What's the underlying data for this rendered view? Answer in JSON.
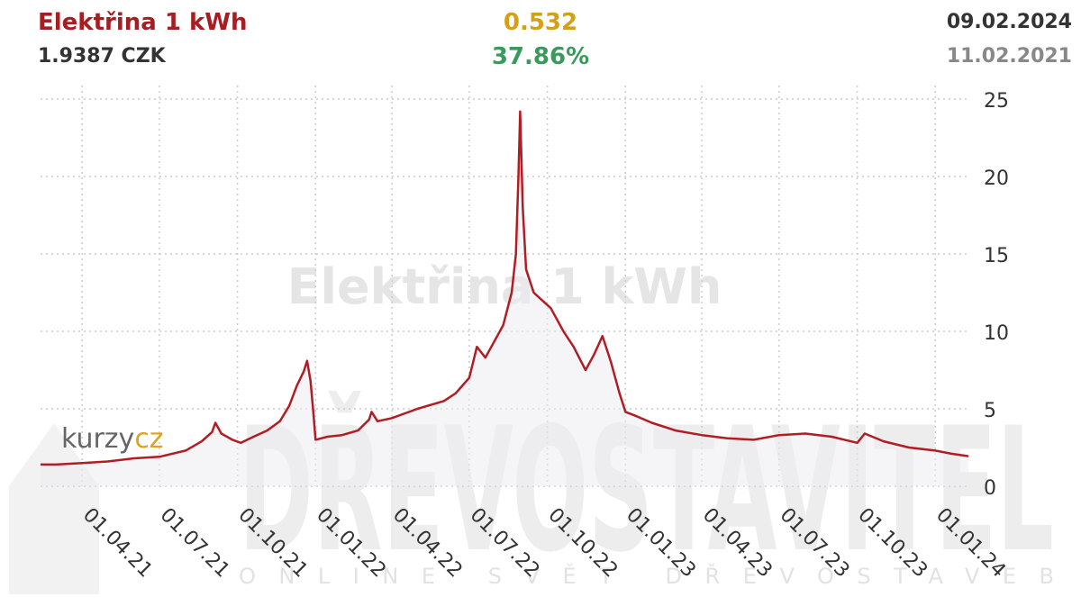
{
  "header": {
    "title": "Elektřina 1 kWh",
    "price": "1.9387 CZK",
    "change": "0.532",
    "change_pct": "37.86%",
    "date_end": "09.02.2024",
    "date_start": "11.02.2021"
  },
  "watermarks": {
    "chart_name": "Elektřina 1 kWh",
    "brand": "kurzy",
    "brand_suffix": "cz",
    "publisher": "DŘEVOSTAVITEL",
    "publisher_tagline": "ONLINE SVĚT DŘEVOSTAVEB"
  },
  "colors": {
    "line": "#b01e24",
    "title": "#a41e22",
    "change": "#d4a017",
    "change_pct": "#3a9a5b",
    "grid": "#cccccc",
    "fill": "#ececf0"
  },
  "chart_data": {
    "type": "area",
    "title": "Elektřina 1 kWh",
    "xlabel": "",
    "ylabel": "",
    "ylim": [
      0,
      25
    ],
    "yticks": [
      0,
      5,
      10,
      15,
      20,
      25
    ],
    "xlim": [
      "2021-02-11",
      "2024-02-09"
    ],
    "xticks": [
      {
        "date": "2021-04-01",
        "label": "01.04.21"
      },
      {
        "date": "2021-07-01",
        "label": "01.07.21"
      },
      {
        "date": "2021-10-01",
        "label": "01.10.21"
      },
      {
        "date": "2022-01-01",
        "label": "01.01.22"
      },
      {
        "date": "2022-04-01",
        "label": "01.04.22"
      },
      {
        "date": "2022-07-01",
        "label": "01.07.22"
      },
      {
        "date": "2022-10-01",
        "label": "01.10.22"
      },
      {
        "date": "2023-01-01",
        "label": "01.01.23"
      },
      {
        "date": "2023-04-01",
        "label": "01.04.23"
      },
      {
        "date": "2023-07-01",
        "label": "01.07.23"
      },
      {
        "date": "2023-10-01",
        "label": "01.10.23"
      },
      {
        "date": "2024-01-01",
        "label": "01.01.24"
      }
    ],
    "grid": true,
    "series": [
      {
        "points": [
          [
            "2021-02-11",
            1.4
          ],
          [
            "2021-03-01",
            1.4
          ],
          [
            "2021-04-01",
            1.5
          ],
          [
            "2021-05-01",
            1.6
          ],
          [
            "2021-06-01",
            1.8
          ],
          [
            "2021-07-01",
            1.9
          ],
          [
            "2021-08-01",
            2.3
          ],
          [
            "2021-08-20",
            2.9
          ],
          [
            "2021-09-01",
            3.5
          ],
          [
            "2021-09-05",
            4.1
          ],
          [
            "2021-09-12",
            3.4
          ],
          [
            "2021-09-25",
            3.0
          ],
          [
            "2021-10-05",
            2.8
          ],
          [
            "2021-10-20",
            3.2
          ],
          [
            "2021-11-05",
            3.6
          ],
          [
            "2021-11-20",
            4.2
          ],
          [
            "2021-12-01",
            5.2
          ],
          [
            "2021-12-10",
            6.5
          ],
          [
            "2021-12-18",
            7.4
          ],
          [
            "2021-12-22",
            8.1
          ],
          [
            "2021-12-26",
            6.8
          ],
          [
            "2021-12-29",
            5.0
          ],
          [
            "2022-01-01",
            3.0
          ],
          [
            "2022-01-15",
            3.2
          ],
          [
            "2022-02-01",
            3.3
          ],
          [
            "2022-02-20",
            3.6
          ],
          [
            "2022-03-05",
            4.3
          ],
          [
            "2022-03-08",
            4.8
          ],
          [
            "2022-03-15",
            4.2
          ],
          [
            "2022-04-01",
            4.4
          ],
          [
            "2022-05-01",
            5.0
          ],
          [
            "2022-06-01",
            5.5
          ],
          [
            "2022-06-15",
            6.0
          ],
          [
            "2022-07-01",
            7.0
          ],
          [
            "2022-07-10",
            9.0
          ],
          [
            "2022-07-20",
            8.3
          ],
          [
            "2022-08-01",
            9.5
          ],
          [
            "2022-08-10",
            10.4
          ],
          [
            "2022-08-20",
            12.5
          ],
          [
            "2022-08-25",
            15.0
          ],
          [
            "2022-08-28",
            20.0
          ],
          [
            "2022-08-30",
            24.2
          ],
          [
            "2022-09-02",
            18.0
          ],
          [
            "2022-09-06",
            14.0
          ],
          [
            "2022-09-15",
            12.5
          ],
          [
            "2022-09-25",
            12.0
          ],
          [
            "2022-10-05",
            11.5
          ],
          [
            "2022-10-20",
            10.0
          ],
          [
            "2022-11-01",
            9.0
          ],
          [
            "2022-11-15",
            7.5
          ],
          [
            "2022-11-25",
            8.5
          ],
          [
            "2022-12-05",
            9.7
          ],
          [
            "2022-12-15",
            8.0
          ],
          [
            "2022-12-25",
            6.0
          ],
          [
            "2023-01-01",
            4.8
          ],
          [
            "2023-01-15",
            4.5
          ],
          [
            "2023-02-01",
            4.1
          ],
          [
            "2023-03-01",
            3.6
          ],
          [
            "2023-04-01",
            3.3
          ],
          [
            "2023-05-01",
            3.1
          ],
          [
            "2023-06-01",
            3.0
          ],
          [
            "2023-07-01",
            3.3
          ],
          [
            "2023-08-01",
            3.4
          ],
          [
            "2023-09-01",
            3.2
          ],
          [
            "2023-10-01",
            2.8
          ],
          [
            "2023-10-10",
            3.4
          ],
          [
            "2023-11-01",
            2.9
          ],
          [
            "2023-12-01",
            2.5
          ],
          [
            "2024-01-01",
            2.3
          ],
          [
            "2024-01-20",
            2.1
          ],
          [
            "2024-02-09",
            1.94
          ]
        ]
      }
    ]
  }
}
